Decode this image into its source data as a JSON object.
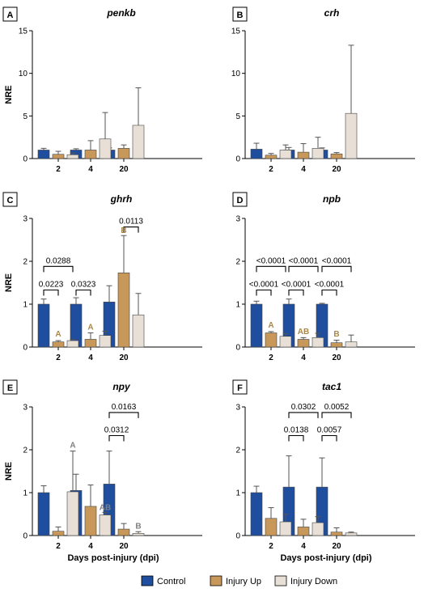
{
  "colors": {
    "control": "#1f4e9e",
    "injury_up": "#c8975a",
    "injury_down": "#e8e0d6",
    "letter": "#a8884a",
    "letter_gray": "#808080",
    "axis": "#000000"
  },
  "legend": {
    "items": [
      {
        "label": "Control",
        "color": "#1f4e9e"
      },
      {
        "label": "Injury Up",
        "color": "#c8975a"
      },
      {
        "label": "Injury Down",
        "color": "#e8e0d6"
      }
    ]
  },
  "chart_data": [
    {
      "type": "bar",
      "panel": "A",
      "title": "penkb",
      "categories": [
        "2",
        "4",
        "20"
      ],
      "ylabel": "NRE",
      "xlabel": "",
      "ylim": [
        0,
        15
      ],
      "yticks": [
        0,
        5,
        10,
        15
      ],
      "series": [
        {
          "name": "Control",
          "values": [
            1.0,
            1.0,
            1.0
          ],
          "errors": [
            0.2,
            0.15,
            0.25
          ]
        },
        {
          "name": "Injury Up",
          "values": [
            0.5,
            1.0,
            1.2
          ],
          "errors": [
            0.35,
            1.1,
            0.4
          ]
        },
        {
          "name": "Injury Down",
          "values": [
            0.45,
            2.3,
            3.9
          ],
          "errors": [
            0.2,
            3.1,
            4.4
          ]
        }
      ],
      "brackets": [],
      "letters": []
    },
    {
      "type": "bar",
      "panel": "B",
      "title": "crh",
      "categories": [
        "2",
        "4",
        "20"
      ],
      "ylabel": "",
      "xlabel": "",
      "ylim": [
        0,
        15
      ],
      "yticks": [
        0,
        5,
        10,
        15
      ],
      "series": [
        {
          "name": "Control",
          "values": [
            1.1,
            1.0,
            1.0
          ],
          "errors": [
            0.7,
            0.3,
            0.25
          ]
        },
        {
          "name": "Injury Up",
          "values": [
            0.4,
            0.75,
            0.55
          ],
          "errors": [
            0.2,
            1.0,
            0.15
          ]
        },
        {
          "name": "Injury Down",
          "values": [
            1.0,
            1.2,
            5.3
          ],
          "errors": [
            0.6,
            1.3,
            8.0
          ]
        }
      ],
      "brackets": [],
      "letters": []
    },
    {
      "type": "bar",
      "panel": "C",
      "title": "ghrh",
      "categories": [
        "2",
        "4",
        "20"
      ],
      "ylabel": "NRE",
      "xlabel": "",
      "ylim": [
        0,
        3
      ],
      "yticks": [
        0,
        1,
        2,
        3
      ],
      "series": [
        {
          "name": "Control",
          "values": [
            1.0,
            1.0,
            1.05
          ],
          "errors": [
            0.12,
            0.15,
            0.38
          ]
        },
        {
          "name": "Injury Up",
          "values": [
            0.12,
            0.18,
            1.73
          ],
          "errors": [
            0.03,
            0.15,
            0.87
          ]
        },
        {
          "name": "Injury Down",
          "values": [
            0.15,
            0.27,
            0.75
          ],
          "errors": [
            0.03,
            0.1,
            0.5
          ]
        }
      ],
      "brackets": [
        {
          "cat": 0,
          "from": 0,
          "to": 1,
          "y": 1.33,
          "label": "0.0223"
        },
        {
          "cat": 0,
          "from": 0,
          "to": 2,
          "y": 1.88,
          "label": "0.0288"
        },
        {
          "cat": 1,
          "from": 0,
          "to": 1,
          "y": 1.33,
          "label": "0.0323"
        },
        {
          "cat": 2,
          "from": 1,
          "to": 2,
          "y": 2.8,
          "label": "0.0113"
        }
      ],
      "letters": [
        {
          "cat": 0,
          "series": 1,
          "y": 0.25,
          "text": "A",
          "tone": "gold"
        },
        {
          "cat": 1,
          "series": 1,
          "y": 0.41,
          "text": "A",
          "tone": "gold"
        },
        {
          "cat": 2,
          "series": 1,
          "y": 2.66,
          "text": "B",
          "tone": "gold"
        }
      ]
    },
    {
      "type": "bar",
      "panel": "D",
      "title": "npb",
      "categories": [
        "2",
        "4",
        "20"
      ],
      "ylabel": "",
      "xlabel": "",
      "ylim": [
        0,
        3
      ],
      "yticks": [
        0,
        1,
        2,
        3
      ],
      "series": [
        {
          "name": "Control",
          "values": [
            1.0,
            1.0,
            1.0
          ],
          "errors": [
            0.07,
            0.12,
            0.02
          ]
        },
        {
          "name": "Injury Up",
          "values": [
            0.33,
            0.18,
            0.1
          ],
          "errors": [
            0.03,
            0.04,
            0.06
          ]
        },
        {
          "name": "Injury Down",
          "values": [
            0.25,
            0.22,
            0.12
          ],
          "errors": [
            0.06,
            0.1,
            0.16
          ]
        }
      ],
      "brackets": [
        {
          "cat": 0,
          "from": 0,
          "to": 1,
          "y": 1.33,
          "label": "<0.0001"
        },
        {
          "cat": 0,
          "from": 0,
          "to": 2,
          "y": 1.88,
          "label": "<0.0001"
        },
        {
          "cat": 1,
          "from": 0,
          "to": 1,
          "y": 1.33,
          "label": "<0.0001"
        },
        {
          "cat": 1,
          "from": 0,
          "to": 2,
          "y": 1.88,
          "label": "<0.0001"
        },
        {
          "cat": 2,
          "from": 0,
          "to": 1,
          "y": 1.33,
          "label": "<0.0001"
        },
        {
          "cat": 2,
          "from": 0,
          "to": 2,
          "y": 1.88,
          "label": "<0.0001"
        }
      ],
      "letters": [
        {
          "cat": 0,
          "series": 1,
          "y": 0.45,
          "text": "A",
          "tone": "gold"
        },
        {
          "cat": 1,
          "series": 1,
          "y": 0.3,
          "text": "AB",
          "tone": "gold"
        },
        {
          "cat": 2,
          "series": 1,
          "y": 0.25,
          "text": "B",
          "tone": "gold"
        }
      ]
    },
    {
      "type": "bar",
      "panel": "E",
      "title": "npy",
      "categories": [
        "2",
        "4",
        "20"
      ],
      "ylabel": "NRE",
      "xlabel": "Days post-injury (dpi)",
      "ylim": [
        0,
        3
      ],
      "yticks": [
        0,
        1,
        2,
        3
      ],
      "series": [
        {
          "name": "Control",
          "values": [
            1.0,
            1.05,
            1.2
          ],
          "errors": [
            0.16,
            0.38,
            0.77
          ]
        },
        {
          "name": "Injury Up",
          "values": [
            0.1,
            0.68,
            0.15
          ],
          "errors": [
            0.1,
            0.5,
            0.13
          ]
        },
        {
          "name": "Injury Down",
          "values": [
            1.02,
            0.48,
            0.05
          ],
          "errors": [
            0.95,
            0.06,
            0.04
          ]
        }
      ],
      "brackets": [
        {
          "cat": 2,
          "from": 0,
          "to": 1,
          "y": 2.33,
          "label": "0.0312"
        },
        {
          "cat": 2,
          "from": 0,
          "to": 2,
          "y": 2.87,
          "label": "0.0163"
        }
      ],
      "letters": [
        {
          "cat": 0,
          "series": 2,
          "y": 2.05,
          "text": "A",
          "tone": "gray"
        },
        {
          "cat": 1,
          "series": 2,
          "y": 0.59,
          "text": "AB",
          "tone": "gray"
        },
        {
          "cat": 2,
          "series": 2,
          "y": 0.16,
          "text": "B",
          "tone": "gray"
        }
      ]
    },
    {
      "type": "bar",
      "panel": "F",
      "title": "tac1",
      "categories": [
        "2",
        "4",
        "20"
      ],
      "ylabel": "",
      "xlabel": "Days post-injury (dpi)",
      "ylim": [
        0,
        3
      ],
      "yticks": [
        0,
        1,
        2,
        3
      ],
      "series": [
        {
          "name": "Control",
          "values": [
            1.0,
            1.13,
            1.13
          ],
          "errors": [
            0.15,
            0.73,
            0.68
          ]
        },
        {
          "name": "Injury Up",
          "values": [
            0.4,
            0.2,
            0.08
          ],
          "errors": [
            0.25,
            0.18,
            0.1
          ]
        },
        {
          "name": "Injury Down",
          "values": [
            0.32,
            0.3,
            0.06
          ],
          "errors": [
            0.18,
            0.14,
            0.02
          ]
        }
      ],
      "brackets": [
        {
          "cat": 1,
          "from": 0,
          "to": 1,
          "y": 2.33,
          "label": "0.0138"
        },
        {
          "cat": 1,
          "from": 0,
          "to": 2,
          "y": 2.87,
          "label": "0.0302"
        },
        {
          "cat": 2,
          "from": 0,
          "to": 1,
          "y": 2.33,
          "label": "0.0057"
        },
        {
          "cat": 2,
          "from": 0,
          "to": 2,
          "y": 2.87,
          "label": "0.0052"
        }
      ],
      "letters": []
    }
  ]
}
